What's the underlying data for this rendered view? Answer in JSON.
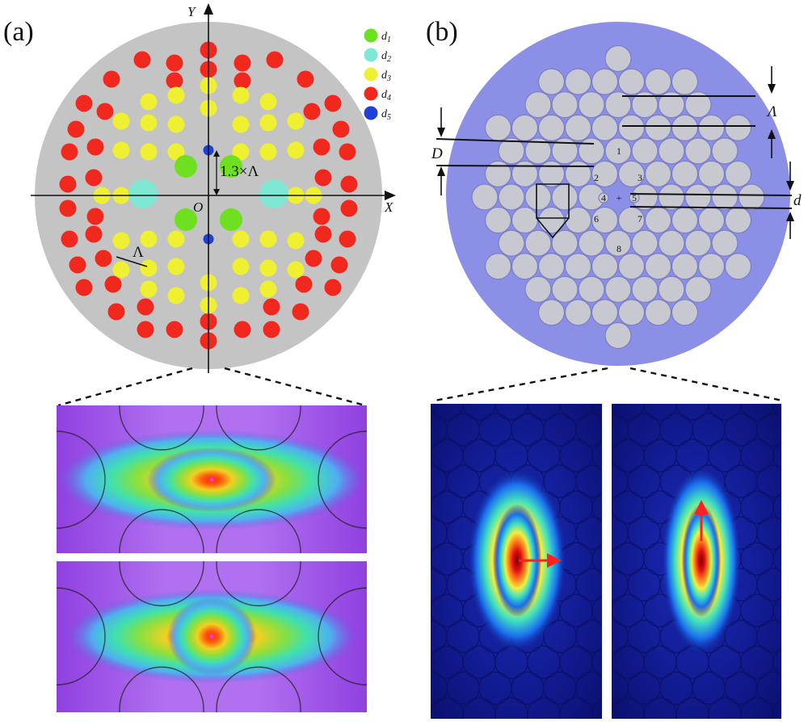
{
  "panels": {
    "a": {
      "label": "(a)"
    },
    "b": {
      "label": "(b)"
    }
  },
  "axes": {
    "y": "Y",
    "x": "X",
    "origin": "O"
  },
  "legend": [
    {
      "letter": "d",
      "sub": "1",
      "color": "#6fe020"
    },
    {
      "letter": "d",
      "sub": "2",
      "color": "#7fe8d4"
    },
    {
      "letter": "d",
      "sub": "3",
      "color": "#f0f033"
    },
    {
      "letter": "d",
      "sub": "4",
      "color": "#f0281e"
    },
    {
      "letter": "d",
      "sub": "5",
      "color": "#1f3fd6"
    }
  ],
  "annotations_a": {
    "spacing": "1.3×Λ",
    "pitch": "Λ"
  },
  "annotations_b": {
    "pitch": "Λ",
    "diameter": "D",
    "small_diameter": "d",
    "holes": [
      "1",
      "2",
      "3",
      "4",
      "5",
      "6",
      "7",
      "8"
    ],
    "center_mark": "+"
  },
  "colors": {
    "cladding_a": "#c4c4c4",
    "cladding_b": "#8b8fe6",
    "hole_b": "#c8c8d0"
  }
}
